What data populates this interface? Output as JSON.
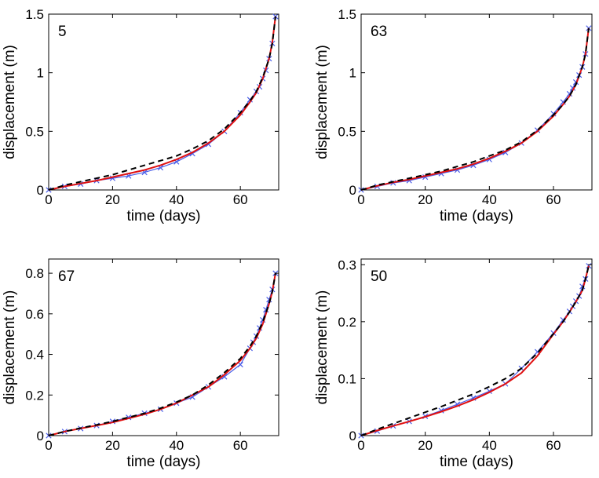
{
  "chart_data": [
    {
      "type": "line",
      "panel_label": "5",
      "xlabel": "time (days)",
      "ylabel": "displacement (m)",
      "xlim": [
        0,
        72
      ],
      "ylim": [
        0,
        1.5
      ],
      "xticks": [
        0,
        20,
        40,
        60
      ],
      "xtick_labels": [
        "0",
        "20",
        "40",
        "60"
      ],
      "yticks": [
        0,
        0.5,
        1,
        1.5
      ],
      "ytick_labels": [
        "0",
        "0.5",
        "1",
        "1.5"
      ],
      "series": [
        {
          "name": "observed",
          "style": "blue-cross-line",
          "color": "#4a5ee8",
          "x": [
            0,
            5,
            10,
            15,
            20,
            25,
            30,
            35,
            40,
            45,
            50,
            55,
            60,
            63,
            65,
            66,
            67,
            68,
            69,
            70,
            71
          ],
          "y": [
            0,
            0.03,
            0.05,
            0.08,
            0.1,
            0.12,
            0.15,
            0.19,
            0.24,
            0.31,
            0.39,
            0.5,
            0.66,
            0.77,
            0.84,
            0.88,
            0.95,
            1.02,
            1.12,
            1.25,
            1.48
          ]
        },
        {
          "name": "model-red",
          "style": "red-solid",
          "color": "#e01010",
          "x": [
            0,
            5,
            10,
            15,
            20,
            25,
            30,
            35,
            40,
            45,
            50,
            55,
            60,
            63,
            65,
            67,
            69,
            70,
            71
          ],
          "y": [
            0,
            0.03,
            0.055,
            0.08,
            0.11,
            0.14,
            0.17,
            0.21,
            0.26,
            0.32,
            0.4,
            0.5,
            0.64,
            0.75,
            0.83,
            0.95,
            1.12,
            1.26,
            1.48
          ]
        },
        {
          "name": "model-dashed",
          "style": "black-dashed",
          "color": "#000000",
          "x": [
            0,
            5,
            10,
            15,
            20,
            25,
            30,
            35,
            40,
            45,
            50,
            55,
            60,
            63,
            65,
            67,
            69,
            70,
            71
          ],
          "y": [
            0,
            0.04,
            0.07,
            0.1,
            0.13,
            0.17,
            0.21,
            0.25,
            0.29,
            0.35,
            0.42,
            0.52,
            0.66,
            0.76,
            0.84,
            0.96,
            1.12,
            1.25,
            1.48
          ]
        }
      ]
    },
    {
      "type": "line",
      "panel_label": "63",
      "xlabel": "time (days)",
      "ylabel": "displacement (m)",
      "xlim": [
        0,
        72
      ],
      "ylim": [
        0,
        1.5
      ],
      "xticks": [
        0,
        20,
        40,
        60
      ],
      "xtick_labels": [
        "0",
        "20",
        "40",
        "60"
      ],
      "yticks": [
        0,
        0.5,
        1,
        1.5
      ],
      "ytick_labels": [
        "0",
        "0.5",
        "1",
        "1.5"
      ],
      "series": [
        {
          "name": "observed",
          "style": "blue-cross-line",
          "color": "#4a5ee8",
          "x": [
            0,
            5,
            10,
            15,
            20,
            25,
            30,
            35,
            40,
            45,
            50,
            55,
            60,
            63,
            65,
            66,
            67,
            68,
            69,
            70,
            71
          ],
          "y": [
            0,
            0.03,
            0.06,
            0.08,
            0.11,
            0.14,
            0.17,
            0.21,
            0.26,
            0.32,
            0.4,
            0.51,
            0.65,
            0.75,
            0.82,
            0.87,
            0.92,
            0.98,
            1.05,
            1.16,
            1.38
          ]
        },
        {
          "name": "model-red",
          "style": "red-solid",
          "color": "#e01010",
          "x": [
            0,
            5,
            10,
            15,
            20,
            25,
            30,
            35,
            40,
            45,
            50,
            55,
            60,
            63,
            65,
            67,
            69,
            70,
            71
          ],
          "y": [
            0,
            0.035,
            0.065,
            0.09,
            0.12,
            0.15,
            0.18,
            0.22,
            0.27,
            0.33,
            0.4,
            0.5,
            0.63,
            0.73,
            0.8,
            0.9,
            1.05,
            1.16,
            1.38
          ]
        },
        {
          "name": "model-dashed",
          "style": "black-dashed",
          "color": "#000000",
          "x": [
            0,
            5,
            10,
            15,
            20,
            25,
            30,
            35,
            40,
            45,
            50,
            55,
            60,
            63,
            65,
            67,
            69,
            70,
            71
          ],
          "y": [
            0,
            0.04,
            0.07,
            0.1,
            0.13,
            0.16,
            0.2,
            0.24,
            0.29,
            0.34,
            0.41,
            0.51,
            0.64,
            0.73,
            0.8,
            0.9,
            1.05,
            1.16,
            1.38
          ]
        }
      ]
    },
    {
      "type": "line",
      "panel_label": "67",
      "xlabel": "time (days)",
      "ylabel": "displacement (m)",
      "xlim": [
        0,
        72
      ],
      "ylim": [
        0,
        0.87
      ],
      "xticks": [
        0,
        20,
        40,
        60
      ],
      "xtick_labels": [
        "0",
        "20",
        "40",
        "60"
      ],
      "yticks": [
        0,
        0.2,
        0.4,
        0.6,
        0.8
      ],
      "ytick_labels": [
        "0",
        "0.2",
        "0.4",
        "0.6",
        "0.8"
      ],
      "series": [
        {
          "name": "observed",
          "style": "blue-cross-line",
          "color": "#4a5ee8",
          "x": [
            0,
            5,
            10,
            15,
            20,
            25,
            30,
            35,
            40,
            45,
            50,
            55,
            60,
            63,
            64,
            65,
            66,
            67,
            68,
            69,
            70,
            71
          ],
          "y": [
            0,
            0.02,
            0.035,
            0.05,
            0.07,
            0.09,
            0.11,
            0.13,
            0.16,
            0.19,
            0.24,
            0.29,
            0.35,
            0.43,
            0.46,
            0.49,
            0.53,
            0.57,
            0.62,
            0.67,
            0.72,
            0.8
          ]
        },
        {
          "name": "model-red",
          "style": "red-solid",
          "color": "#e01010",
          "x": [
            0,
            5,
            10,
            15,
            20,
            25,
            30,
            35,
            40,
            45,
            50,
            55,
            60,
            63,
            65,
            67,
            69,
            70,
            71
          ],
          "y": [
            0,
            0.02,
            0.035,
            0.05,
            0.065,
            0.085,
            0.105,
            0.13,
            0.16,
            0.2,
            0.24,
            0.3,
            0.37,
            0.43,
            0.48,
            0.55,
            0.65,
            0.71,
            0.8
          ]
        },
        {
          "name": "model-dashed",
          "style": "black-dashed",
          "color": "#000000",
          "x": [
            0,
            5,
            10,
            15,
            20,
            25,
            30,
            35,
            40,
            45,
            50,
            55,
            60,
            63,
            65,
            67,
            69,
            70,
            71
          ],
          "y": [
            0,
            0.02,
            0.037,
            0.053,
            0.07,
            0.09,
            0.11,
            0.135,
            0.165,
            0.2,
            0.25,
            0.31,
            0.38,
            0.44,
            0.49,
            0.56,
            0.65,
            0.71,
            0.8
          ]
        }
      ]
    },
    {
      "type": "line",
      "panel_label": "50",
      "xlabel": "time (days)",
      "ylabel": "displacement (m)",
      "xlim": [
        0,
        72
      ],
      "ylim": [
        0,
        0.31
      ],
      "xticks": [
        0,
        20,
        40,
        60
      ],
      "xtick_labels": [
        "0",
        "20",
        "40",
        "60"
      ],
      "yticks": [
        0,
        0.1,
        0.2,
        0.3
      ],
      "ytick_labels": [
        "0",
        "0.1",
        "0.2",
        "0.3"
      ],
      "series": [
        {
          "name": "observed",
          "style": "blue-cross-line",
          "color": "#4a5ee8",
          "x": [
            0,
            5,
            10,
            15,
            20,
            25,
            30,
            35,
            40,
            45,
            50,
            55,
            60,
            63,
            65,
            66,
            67,
            68,
            69,
            70,
            71
          ],
          "y": [
            0,
            0.008,
            0.017,
            0.025,
            0.034,
            0.044,
            0.055,
            0.066,
            0.078,
            0.091,
            0.118,
            0.147,
            0.18,
            0.203,
            0.218,
            0.227,
            0.236,
            0.245,
            0.262,
            0.275,
            0.298
          ]
        },
        {
          "name": "model-red",
          "style": "red-solid",
          "color": "#e01010",
          "x": [
            0,
            5,
            10,
            15,
            20,
            25,
            30,
            35,
            40,
            45,
            50,
            55,
            60,
            63,
            65,
            67,
            69,
            70,
            71
          ],
          "y": [
            0,
            0.009,
            0.017,
            0.025,
            0.033,
            0.042,
            0.052,
            0.063,
            0.076,
            0.091,
            0.11,
            0.14,
            0.178,
            0.2,
            0.217,
            0.235,
            0.255,
            0.275,
            0.298
          ]
        },
        {
          "name": "model-dashed",
          "style": "black-dashed",
          "color": "#000000",
          "x": [
            0,
            5,
            10,
            15,
            20,
            25,
            30,
            35,
            40,
            45,
            50,
            55,
            60,
            63,
            65,
            67,
            69,
            70,
            71
          ],
          "y": [
            0,
            0.011,
            0.021,
            0.031,
            0.041,
            0.051,
            0.062,
            0.073,
            0.086,
            0.1,
            0.118,
            0.145,
            0.179,
            0.2,
            0.217,
            0.235,
            0.255,
            0.275,
            0.298
          ]
        }
      ]
    }
  ]
}
